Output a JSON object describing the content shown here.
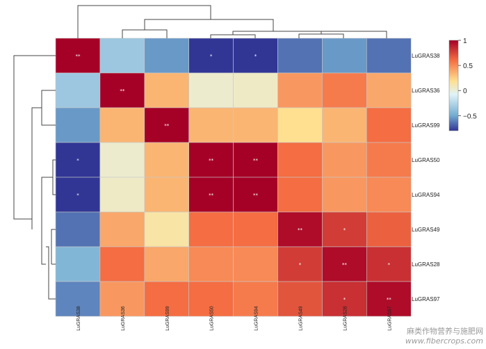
{
  "chart_data": {
    "type": "heatmap",
    "rows": [
      "LuGRAS38",
      "LuGRAS36",
      "LuGRAS99",
      "LuGRAS50",
      "LuGRAS94",
      "LuGRAS49",
      "LuGRAS28",
      "LuGRAS97"
    ],
    "columns": [
      "LuGRAS38",
      "LuGRAS36",
      "LuGRAS99",
      "LuGRAS50",
      "LuGRAS94",
      "LuGRAS49",
      "LuGRAS28",
      "LuGRAS97"
    ],
    "values": [
      [
        1.0,
        -0.35,
        -0.55,
        -0.85,
        -0.85,
        -0.65,
        -0.55,
        -0.65
      ],
      [
        -0.35,
        1.0,
        0.3,
        0.0,
        0.02,
        0.4,
        0.5,
        0.35
      ],
      [
        -0.55,
        0.3,
        1.0,
        0.3,
        0.3,
        0.15,
        0.3,
        0.55
      ],
      [
        -0.85,
        0.0,
        0.3,
        1.0,
        1.0,
        0.55,
        0.4,
        0.5
      ],
      [
        -0.85,
        0.02,
        0.3,
        1.0,
        1.0,
        0.55,
        0.4,
        0.45
      ],
      [
        -0.65,
        0.35,
        0.1,
        0.55,
        0.55,
        0.95,
        0.75,
        0.6
      ],
      [
        -0.45,
        0.55,
        0.35,
        0.45,
        0.45,
        0.75,
        0.95,
        0.8
      ],
      [
        -0.6,
        0.4,
        0.55,
        0.55,
        0.5,
        0.65,
        0.8,
        0.95
      ]
    ],
    "significance": [
      [
        "**",
        "",
        "",
        "*",
        "*",
        "",
        "",
        ""
      ],
      [
        "",
        "**",
        "",
        "",
        "",
        "",
        "",
        ""
      ],
      [
        "",
        "",
        "**",
        "",
        "",
        "",
        "",
        ""
      ],
      [
        "*",
        "",
        "",
        "**",
        "**",
        "",
        "",
        ""
      ],
      [
        "*",
        "",
        "",
        "**",
        "**",
        "",
        "",
        ""
      ],
      [
        "",
        "",
        "",
        "",
        "",
        "**",
        "*",
        ""
      ],
      [
        "",
        "",
        "",
        "",
        "",
        "*",
        "**",
        "*"
      ],
      [
        "",
        "",
        "",
        "",
        "",
        "",
        "*",
        "**"
      ]
    ],
    "colorbar": {
      "range": [
        -0.8,
        1
      ],
      "ticks": [
        1,
        0.5,
        0,
        -0.5
      ],
      "tick_labels": [
        "1",
        "0.5",
        "0",
        "−0.5"
      ],
      "colors": [
        "#313695",
        "#74add1",
        "#e0f3f8",
        "#fee090",
        "#f46d43",
        "#a50026"
      ]
    },
    "dendrogram": "hierarchical clustering on both rows and columns; order: LuGRAS38 | LuGRAS36, LuGRAS99 | LuGRAS50, LuGRAS94 | LuGRAS49, LuGRAS28, LuGRAS97"
  },
  "watermark": {
    "line1": "麻类作物营养与施肥网",
    "line2": "www.fibercrops.com"
  }
}
